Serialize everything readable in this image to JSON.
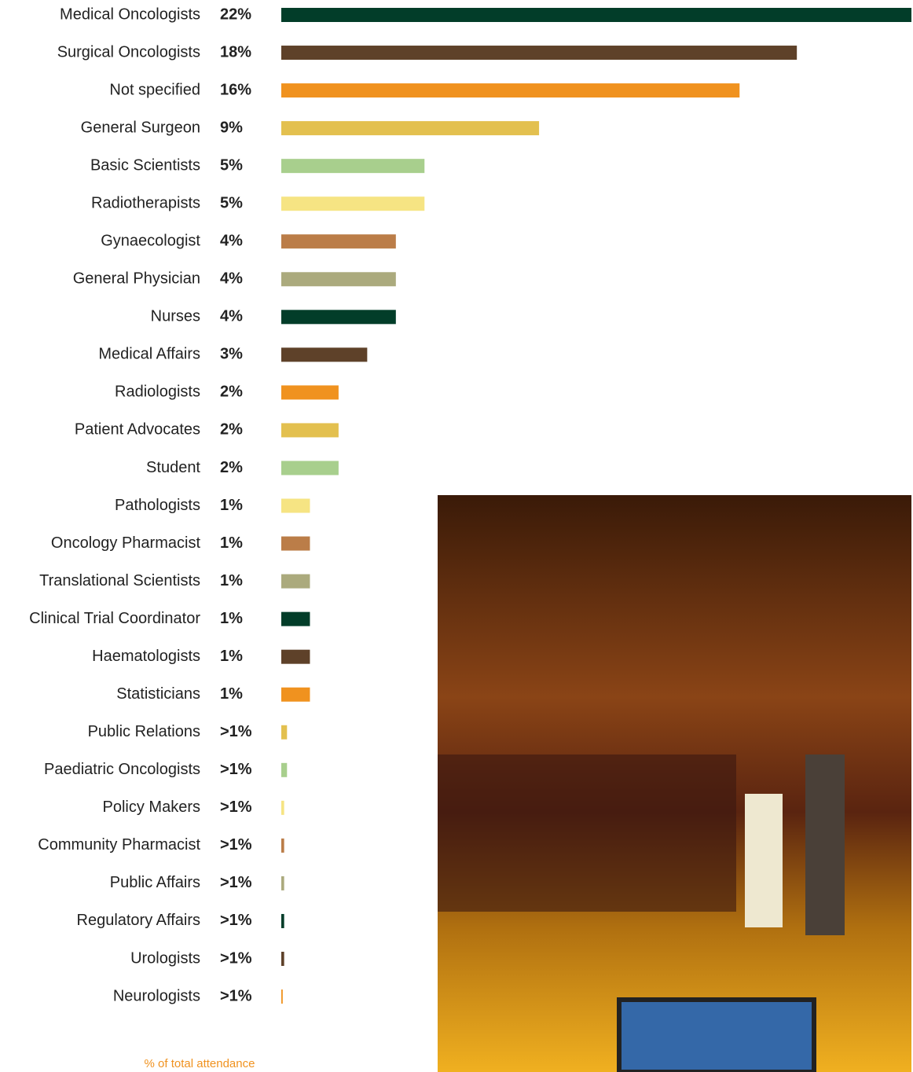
{
  "chart_data": {
    "type": "bar",
    "orientation": "horizontal",
    "categories": [
      "Medical Oncologists",
      "Surgical Oncologists",
      "Not specified",
      "General Surgeon",
      "Basic Scientists",
      "Radiotherapists",
      "Gynaecologist",
      "General Physician",
      "Nurses",
      "Medical Affairs",
      "Radiologists",
      "Patient Advocates",
      "Student",
      "Pathologists",
      "Oncology Pharmacist",
      "Translational Scientists",
      "Clinical Trial Coordinator",
      "Haematologists",
      "Statisticians",
      "Public Relations",
      "Paediatric Oncologists",
      "Policy Makers",
      "Community Pharmacist",
      "Public Affairs",
      "Regulatory Affairs",
      "Urologists",
      "Neurologists"
    ],
    "values": [
      22,
      18,
      16,
      9,
      5,
      5,
      4,
      4,
      4,
      3,
      2,
      2,
      2,
      1,
      1,
      1,
      1,
      1,
      1,
      0.2,
      0.2,
      0.1,
      0.1,
      0.1,
      0.1,
      0.1,
      0.05
    ],
    "value_labels": [
      "22%",
      "18%",
      "16%",
      "9%",
      "5%",
      "5%",
      "4%",
      "4%",
      "4%",
      "3%",
      "2%",
      "2%",
      "2%",
      "1%",
      "1%",
      "1%",
      "1%",
      "1%",
      "1%",
      ">1%",
      ">1%",
      ">1%",
      ">1%",
      ">1%",
      ">1%",
      ">1%",
      ">1%"
    ],
    "colors": [
      "#023d29",
      "#5e4129",
      "#f0921f",
      "#e3c04f",
      "#a8cf8d",
      "#f6e483",
      "#bb7d48",
      "#abaa7d",
      "#023d29",
      "#5e4129",
      "#f0921f",
      "#e3c04f",
      "#a8cf8d",
      "#f6e483",
      "#bb7d48",
      "#abaa7d",
      "#023d29",
      "#5e4129",
      "#f0921f",
      "#e3c04f",
      "#a8cf8d",
      "#f6e483",
      "#bb7d48",
      "#abaa7d",
      "#023d29",
      "#5e4129",
      "#f0921f"
    ],
    "xlim": [
      0,
      22
    ],
    "note": "% of total attendance"
  }
}
